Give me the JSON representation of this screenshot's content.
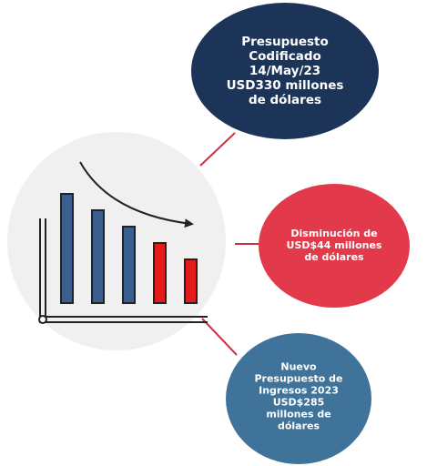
{
  "nodes": [
    {
      "lines": [
        "Presupuesto",
        "Codificado",
        "14/May/23",
        "USD330 millones",
        "de dólares"
      ]
    },
    {
      "lines": [
        "Disminución de",
        "USD$44 millones",
        "de dólares"
      ]
    },
    {
      "lines": [
        "Nuevo",
        "Presupuesto de",
        "Ingresos 2023",
        "USD$285",
        "millones de",
        "dólares"
      ]
    }
  ]
}
